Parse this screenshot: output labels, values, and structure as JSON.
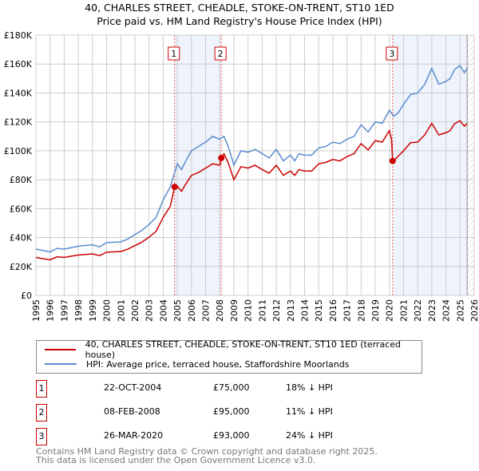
{
  "chart_data": {
    "type": "line",
    "title": "40, CHARLES STREET, CHEADLE, STOKE-ON-TRENT, ST10 1ED",
    "subtitle": "Price paid vs. HM Land Registry's House Price Index (HPI)",
    "ylim": [
      0,
      180000
    ],
    "xlim": [
      1995,
      2026
    ],
    "yticks": [
      "£0",
      "£20K",
      "£40K",
      "£60K",
      "£80K",
      "£100K",
      "£120K",
      "£140K",
      "£160K",
      "£180K"
    ],
    "xticks": [
      "1995",
      "1996",
      "1997",
      "1998",
      "1999",
      "2000",
      "2001",
      "2002",
      "2003",
      "2004",
      "2005",
      "2006",
      "2007",
      "2008",
      "2009",
      "2010",
      "2011",
      "2012",
      "2013",
      "2014",
      "2015",
      "2016",
      "2017",
      "2018",
      "2019",
      "2020",
      "2021",
      "2022",
      "2023",
      "2024",
      "2025",
      "2026"
    ],
    "colors": {
      "price": "#cc0000",
      "hpi": "#5b8ccf",
      "shade": "#eef3fc"
    },
    "series": [
      {
        "name": "40, CHARLES STREET, CHEADLE, STOKE-ON-TRENT, ST10 1ED (terraced house)",
        "points": [
          [
            1995,
            26.2
          ],
          [
            1995.5,
            25.4
          ],
          [
            1996,
            24.6
          ],
          [
            1996.5,
            26.7
          ],
          [
            1997,
            26.2
          ],
          [
            1997.5,
            27.1
          ],
          [
            1998,
            27.9
          ],
          [
            1999,
            28.7
          ],
          [
            1999.5,
            27.5
          ],
          [
            2000,
            29.9
          ],
          [
            2001,
            30.3
          ],
          [
            2001.5,
            32
          ],
          [
            2002,
            34.4
          ],
          [
            2002.5,
            36.9
          ],
          [
            2003,
            40.2
          ],
          [
            2003.5,
            44.3
          ],
          [
            2004,
            54
          ],
          [
            2004.5,
            61.5
          ],
          [
            2004.81,
            75
          ],
          [
            2005,
            75.5
          ],
          [
            2005.3,
            72
          ],
          [
            2005.6,
            77
          ],
          [
            2006,
            83
          ],
          [
            2006.5,
            85
          ],
          [
            2007,
            88
          ],
          [
            2007.5,
            91
          ],
          [
            2008,
            90
          ],
          [
            2008.11,
            95
          ],
          [
            2008.3,
            97.9
          ],
          [
            2008.6,
            91.7
          ],
          [
            2009,
            80
          ],
          [
            2009.5,
            89
          ],
          [
            2010,
            88
          ],
          [
            2010.5,
            90
          ],
          [
            2011,
            87
          ],
          [
            2011.5,
            84.5
          ],
          [
            2012,
            90
          ],
          [
            2012.5,
            83
          ],
          [
            2013,
            86
          ],
          [
            2013.3,
            83
          ],
          [
            2013.6,
            87
          ],
          [
            2014,
            86
          ],
          [
            2014.5,
            86
          ],
          [
            2015,
            91
          ],
          [
            2015.5,
            92
          ],
          [
            2016,
            94
          ],
          [
            2016.5,
            93
          ],
          [
            2017,
            96
          ],
          [
            2017.5,
            98
          ],
          [
            2018,
            105
          ],
          [
            2018.5,
            100.6
          ],
          [
            2019,
            107
          ],
          [
            2019.5,
            106
          ],
          [
            2020,
            114
          ],
          [
            2020.15,
            108
          ],
          [
            2020.23,
            93
          ],
          [
            2020.4,
            94
          ],
          [
            2020.6,
            96
          ],
          [
            2021,
            100
          ],
          [
            2021.5,
            105.6
          ],
          [
            2022,
            106
          ],
          [
            2022.5,
            111
          ],
          [
            2023,
            119
          ],
          [
            2023.5,
            111
          ],
          [
            2024,
            112.5
          ],
          [
            2024.3,
            114
          ],
          [
            2024.6,
            118.6
          ],
          [
            2025,
            120.8
          ],
          [
            2025.3,
            117
          ],
          [
            2025.5,
            119
          ]
        ]
      },
      {
        "name": "HPI: Average price, terraced house, Staffordshire Moorlands",
        "points": [
          [
            1995,
            32
          ],
          [
            1995.5,
            31
          ],
          [
            1996,
            30
          ],
          [
            1996.5,
            32.5
          ],
          [
            1997,
            32
          ],
          [
            1997.5,
            33
          ],
          [
            1998,
            34
          ],
          [
            1999,
            35
          ],
          [
            1999.5,
            33.5
          ],
          [
            2000,
            36.5
          ],
          [
            2001,
            37
          ],
          [
            2001.5,
            39
          ],
          [
            2002,
            42
          ],
          [
            2002.5,
            45
          ],
          [
            2003,
            49
          ],
          [
            2003.5,
            54
          ],
          [
            2004,
            66
          ],
          [
            2004.5,
            75
          ],
          [
            2005,
            91
          ],
          [
            2005.3,
            87
          ],
          [
            2005.6,
            93
          ],
          [
            2006,
            100
          ],
          [
            2006.5,
            103
          ],
          [
            2007,
            106
          ],
          [
            2007.5,
            110
          ],
          [
            2008,
            108
          ],
          [
            2008.3,
            110
          ],
          [
            2008.6,
            103
          ],
          [
            2009,
            90
          ],
          [
            2009.5,
            100
          ],
          [
            2010,
            99
          ],
          [
            2010.5,
            101
          ],
          [
            2011,
            98
          ],
          [
            2011.5,
            95
          ],
          [
            2012,
            101
          ],
          [
            2012.5,
            93
          ],
          [
            2013,
            97
          ],
          [
            2013.3,
            93
          ],
          [
            2013.6,
            98
          ],
          [
            2014,
            97
          ],
          [
            2014.5,
            97
          ],
          [
            2015,
            102
          ],
          [
            2015.5,
            103
          ],
          [
            2016,
            106
          ],
          [
            2016.5,
            105
          ],
          [
            2017,
            108
          ],
          [
            2017.5,
            110
          ],
          [
            2018,
            118
          ],
          [
            2018.5,
            113
          ],
          [
            2019,
            120
          ],
          [
            2019.5,
            119
          ],
          [
            2020,
            128
          ],
          [
            2020.3,
            124
          ],
          [
            2020.6,
            126
          ],
          [
            2021,
            132
          ],
          [
            2021.5,
            139
          ],
          [
            2022,
            140
          ],
          [
            2022.5,
            146
          ],
          [
            2023,
            157
          ],
          [
            2023.5,
            146
          ],
          [
            2024,
            148
          ],
          [
            2024.3,
            150
          ],
          [
            2024.6,
            156
          ],
          [
            2025,
            159
          ],
          [
            2025.3,
            154
          ],
          [
            2025.5,
            157
          ]
        ]
      }
    ],
    "sales": [
      {
        "num": "1",
        "x": 2004.81,
        "y": 75,
        "date": "22-OCT-2004",
        "price": "£75,000",
        "hpi": "18% ↓ HPI"
      },
      {
        "num": "2",
        "x": 2008.11,
        "y": 95,
        "date": "08-FEB-2008",
        "price": "£95,000",
        "hpi": "11% ↓ HPI"
      },
      {
        "num": "3",
        "x": 2020.23,
        "y": 93,
        "date": "26-MAR-2020",
        "price": "£93,000",
        "hpi": "24% ↓ HPI"
      }
    ],
    "shaded_ranges": [
      [
        2004.81,
        2008.11
      ],
      [
        2020.23,
        2025.5
      ]
    ],
    "forecast_start": 2025.5
  },
  "footer": {
    "line1": "Contains HM Land Registry data © Crown copyright and database right 2025.",
    "line2": "This data is licensed under the Open Government Licence v3.0."
  }
}
